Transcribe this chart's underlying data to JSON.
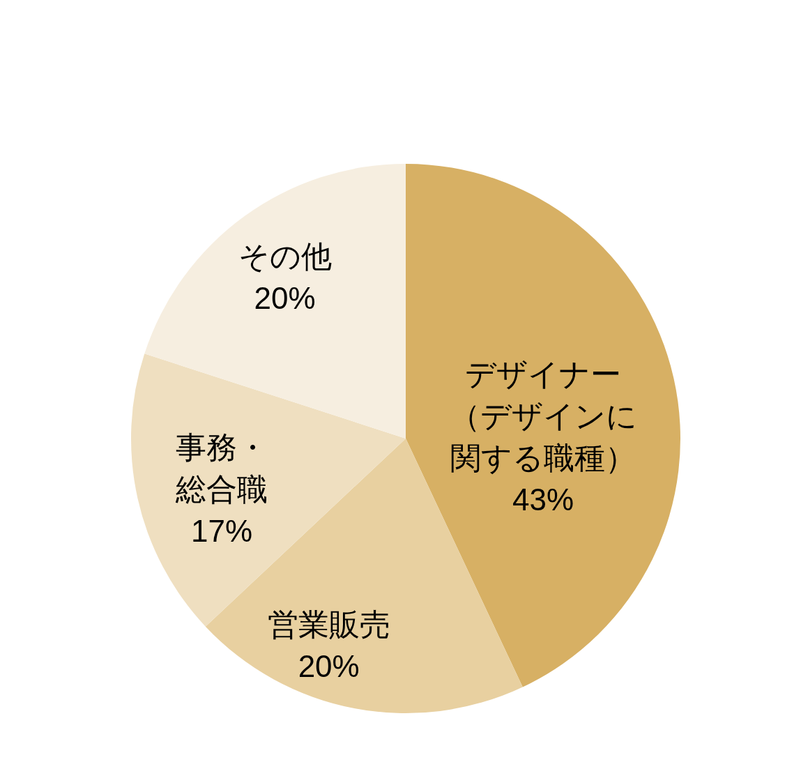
{
  "chart_data": {
    "type": "pie",
    "categories": [
      "デザイナー（デザインに関する職種）",
      "営業販売",
      "事務・総合職",
      "その他"
    ],
    "values": [
      43,
      20,
      17,
      20
    ],
    "colors": [
      "#d7b064",
      "#e8d0a0",
      "#efdfc0",
      "#f6eee0"
    ],
    "value_labels": [
      "43%",
      "20%",
      "17%",
      "20%"
    ]
  }
}
